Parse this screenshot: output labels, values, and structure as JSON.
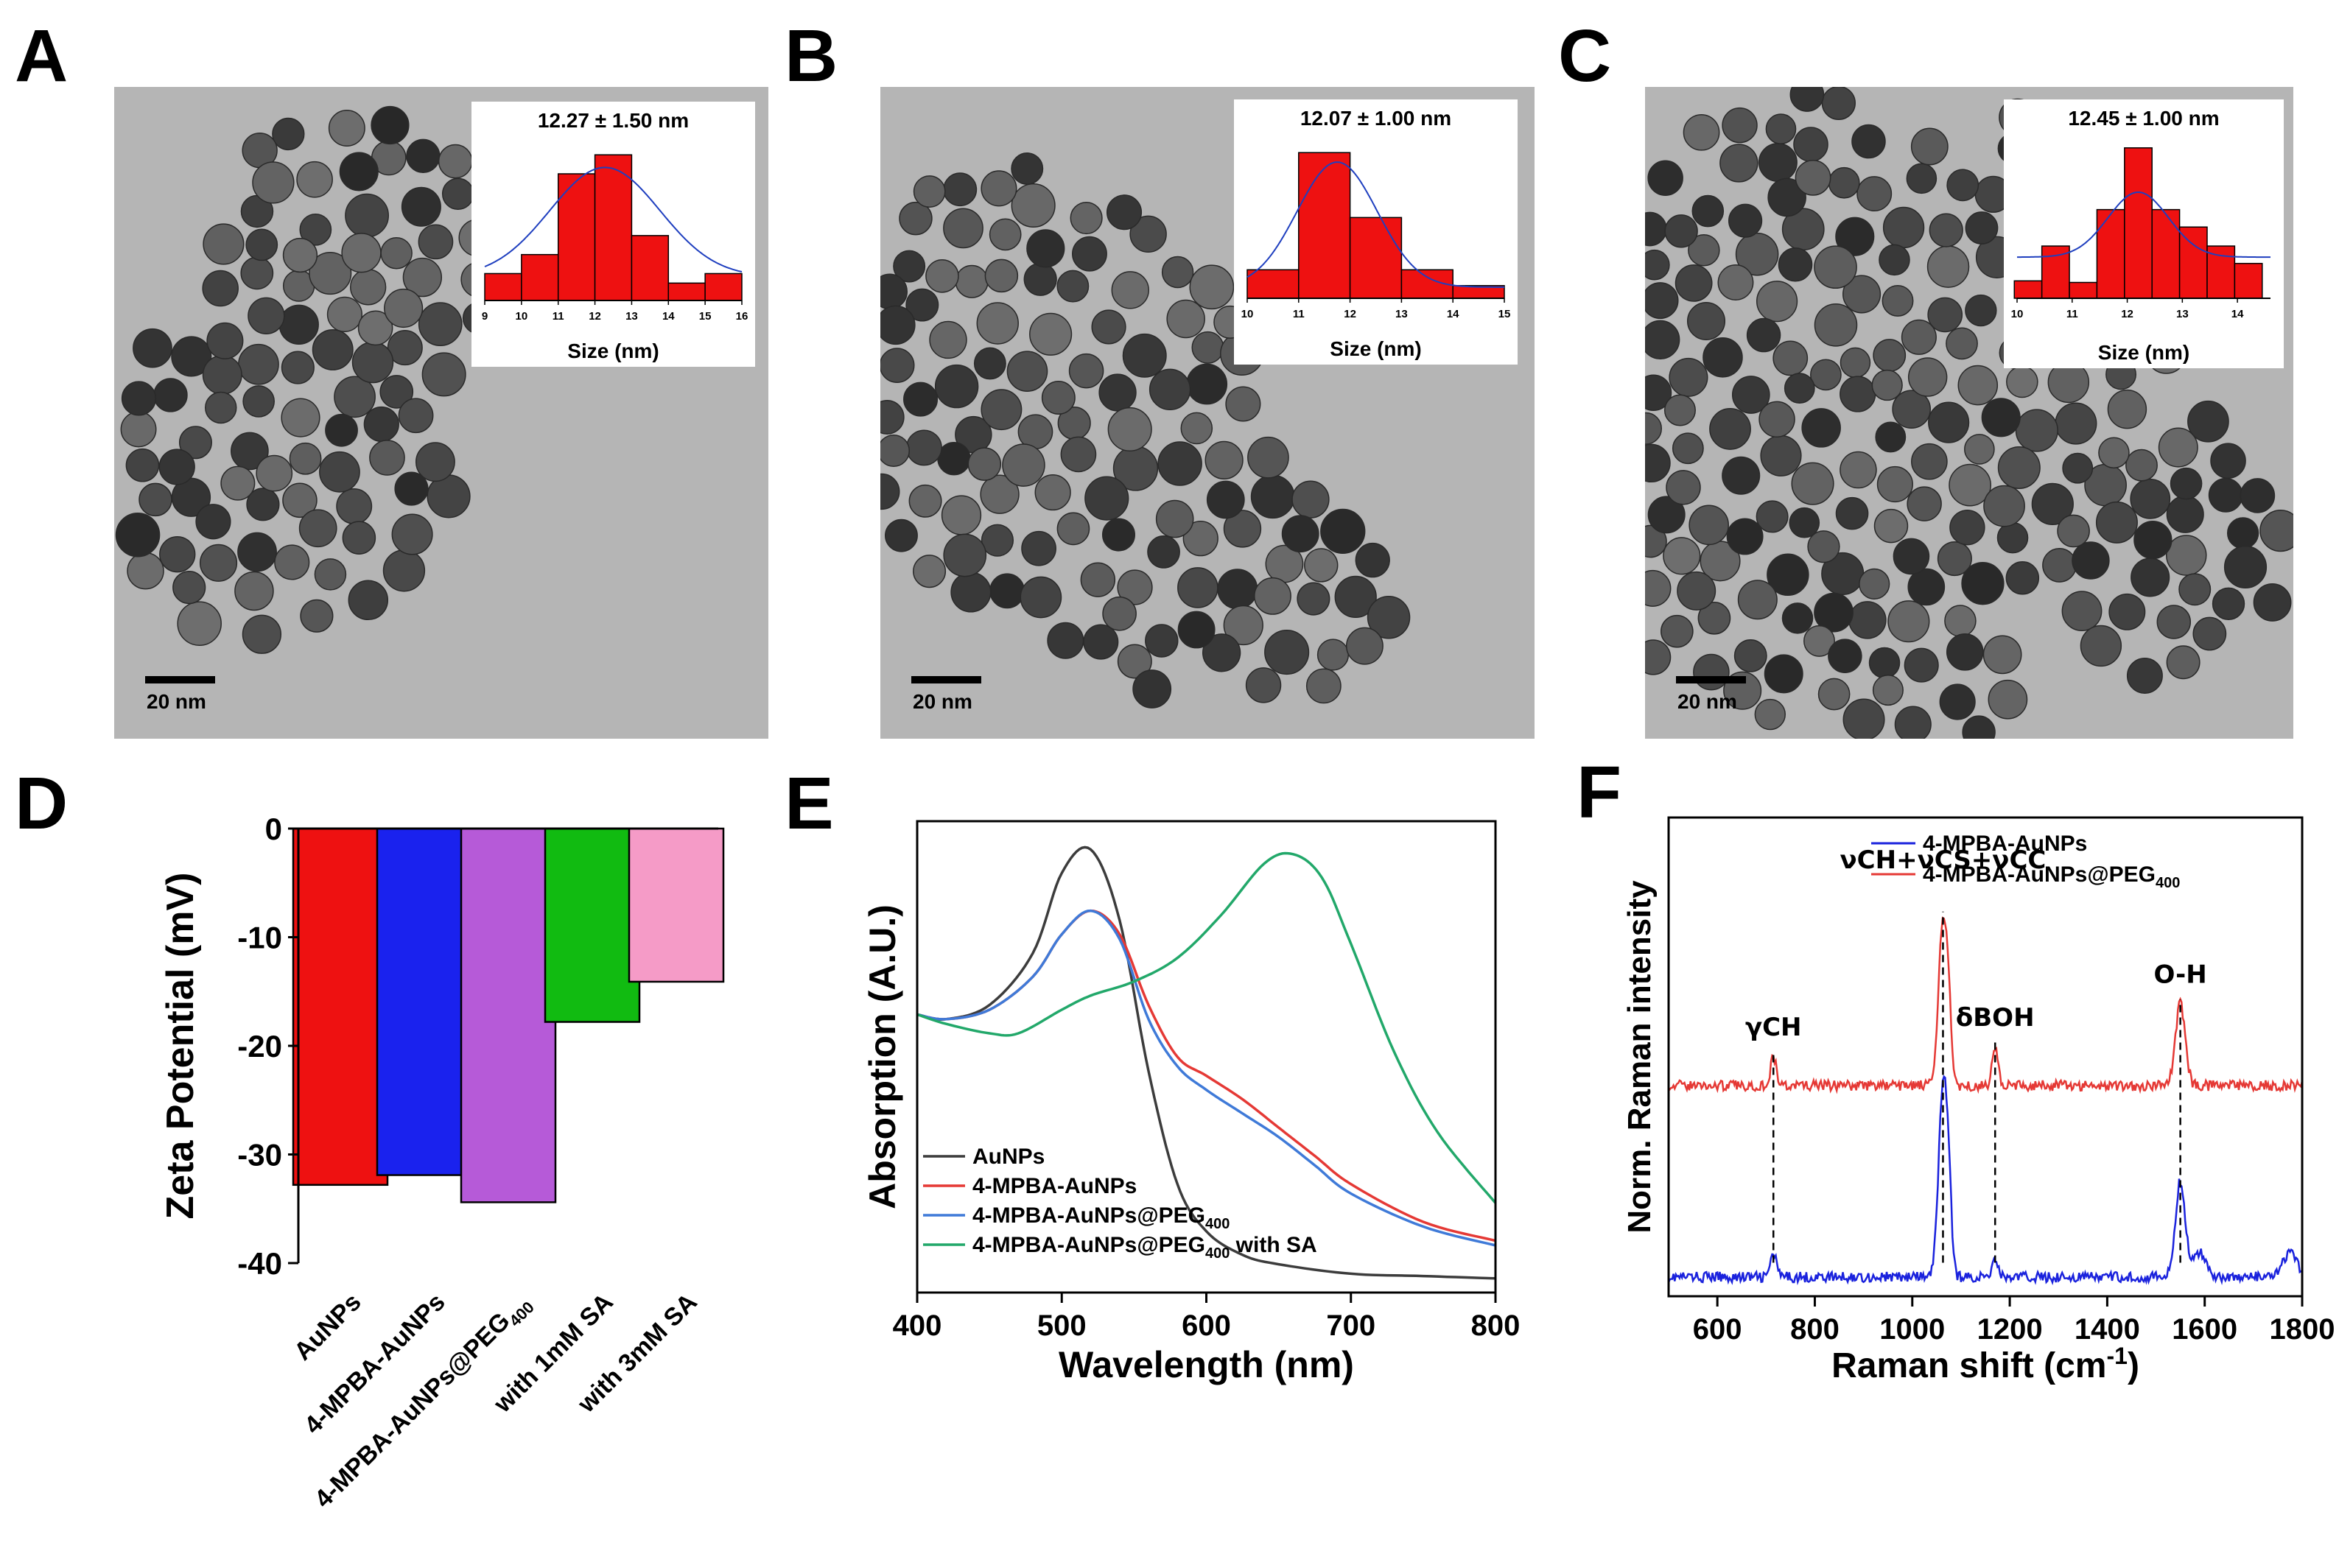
{
  "panel_labels": [
    "A",
    "B",
    "C",
    "D",
    "E",
    "F"
  ],
  "scale_bar_label": "20 nm",
  "colors": {
    "tem_background": "#b5b5b5",
    "particle": "#3a3a3a",
    "hist_bar": "#ee1111",
    "fit_curve": "#1f3fbf",
    "zeta": [
      "#ee1111",
      "#1a22ee",
      "#b65ad8",
      "#11bb11",
      "#f59bc7"
    ],
    "uv": [
      "#3c3c3c",
      "#e53935",
      "#3f7ad8",
      "#22a86a"
    ],
    "raman": [
      "#1a22dd",
      "#e53935"
    ]
  },
  "chart_data": [
    {
      "type": "bar",
      "panel": "A",
      "title": "12.27 ± 1.50 nm",
      "xlabel": "Size (nm)",
      "ylabel": "",
      "x_ticks": [
        "9",
        "10",
        "11",
        "12",
        "13",
        "14",
        "15",
        "16"
      ],
      "xlim": [
        9,
        16
      ],
      "ylim": [
        0,
        1
      ],
      "bar_centers": [
        9.5,
        10.5,
        11.5,
        12.5,
        13.5,
        14.5,
        15.5
      ],
      "values": [
        0.17,
        0.29,
        0.8,
        0.92,
        0.41,
        0.11,
        0.17
      ],
      "fit": {
        "type": "gaussian",
        "mean": 12.27,
        "sd": 1.5,
        "peak": 0.84,
        "baseline": 0.15
      }
    },
    {
      "type": "bar",
      "panel": "B",
      "title": "12.07 ± 1.00 nm",
      "xlabel": "Size (nm)",
      "ylabel": "",
      "x_ticks": [
        "10",
        "11",
        "12",
        "13",
        "14",
        "15"
      ],
      "xlim": [
        10,
        15
      ],
      "ylim": [
        0,
        1
      ],
      "bar_centers": [
        10.5,
        11.5,
        12.5,
        13.5,
        14.5
      ],
      "values": [
        0.18,
        0.92,
        0.51,
        0.18,
        0.08
      ],
      "fit": {
        "type": "gaussian",
        "mean": 11.75,
        "sd": 0.78,
        "peak": 0.86,
        "baseline": 0.07
      }
    },
    {
      "type": "bar",
      "panel": "C",
      "title": "12.45 ± 1.00 nm",
      "xlabel": "Size (nm)",
      "ylabel": "",
      "x_ticks": [
        "10",
        "11",
        "12",
        "13",
        "14"
      ],
      "xlim": [
        10,
        14.6
      ],
      "ylim": [
        0,
        1
      ],
      "bar_centers": [
        10.2,
        10.7,
        11.2,
        11.7,
        12.2,
        12.7,
        13.2,
        13.7,
        14.2
      ],
      "values": [
        0.11,
        0.33,
        0.1,
        0.56,
        0.95,
        0.56,
        0.45,
        0.33,
        0.22
      ],
      "fit": {
        "type": "gaussian",
        "mean": 12.2,
        "sd": 0.55,
        "peak": 0.67,
        "baseline": 0.26
      }
    },
    {
      "type": "bar",
      "panel": "D",
      "title": "",
      "xlabel": "",
      "ylabel": "Zeta Potential (mV)",
      "categories": [
        "AuNPs",
        "4-MPBA-AuNPs",
        "4-MPBA-AuNPs@PEG",
        "with 1mM SA",
        "with 3mM SA"
      ],
      "category_subscripts": [
        "",
        "",
        "400",
        "",
        ""
      ],
      "values": [
        -32.8,
        -31.9,
        -34.4,
        -17.8,
        -14.1
      ],
      "y_ticks": [
        "0",
        "-10",
        "-20",
        "-30",
        "-40"
      ],
      "ylim": [
        -40,
        0
      ]
    },
    {
      "type": "line",
      "panel": "E",
      "title": "",
      "xlabel": "Wavelength (nm)",
      "ylabel": "Absorption (A.U.)",
      "x_ticks": [
        "400",
        "500",
        "600",
        "700",
        "800"
      ],
      "xlim": [
        400,
        800
      ],
      "ylim": [
        0,
        1
      ],
      "series": [
        {
          "name": "AuNPs",
          "subscript": "",
          "suffix": "",
          "x": [
            400,
            420,
            450,
            480,
            500,
            520,
            540,
            560,
            580,
            600,
            625,
            650,
            700,
            750,
            800
          ],
          "y": [
            0.59,
            0.58,
            0.61,
            0.72,
            0.89,
            0.94,
            0.79,
            0.47,
            0.23,
            0.13,
            0.08,
            0.06,
            0.04,
            0.035,
            0.03
          ]
        },
        {
          "name": "4-MPBA-AuNPs",
          "subscript": "",
          "suffix": "",
          "x": [
            400,
            420,
            450,
            480,
            500,
            520,
            540,
            560,
            580,
            600,
            625,
            650,
            675,
            700,
            750,
            800
          ],
          "y": [
            0.59,
            0.58,
            0.6,
            0.67,
            0.76,
            0.81,
            0.76,
            0.61,
            0.5,
            0.46,
            0.41,
            0.35,
            0.29,
            0.23,
            0.15,
            0.11
          ]
        },
        {
          "name": "4-MPBA-AuNPs@PEG",
          "subscript": "400",
          "suffix": "",
          "x": [
            400,
            420,
            450,
            480,
            500,
            520,
            540,
            560,
            580,
            600,
            625,
            650,
            675,
            700,
            750,
            800
          ],
          "y": [
            0.59,
            0.58,
            0.6,
            0.67,
            0.76,
            0.81,
            0.75,
            0.58,
            0.48,
            0.43,
            0.38,
            0.33,
            0.27,
            0.21,
            0.14,
            0.1
          ]
        },
        {
          "name": "4-MPBA-AuNPs@PEG",
          "subscript": "400",
          "suffix": " with SA",
          "x": [
            400,
            420,
            450,
            470,
            500,
            520,
            550,
            580,
            610,
            640,
            660,
            680,
            700,
            730,
            760,
            800
          ],
          "y": [
            0.59,
            0.57,
            0.55,
            0.55,
            0.6,
            0.63,
            0.66,
            0.71,
            0.8,
            0.91,
            0.93,
            0.88,
            0.74,
            0.51,
            0.34,
            0.19
          ]
        }
      ],
      "legend_location": "bottom-left"
    },
    {
      "type": "line",
      "panel": "F",
      "title": "",
      "xlabel": "Raman shift (cm",
      "xlabel_sup": "-1",
      "xlabel_end": ")",
      "ylabel": "Norm. Raman intensity",
      "x_ticks": [
        "600",
        "800",
        "1000",
        "1200",
        "1400",
        "1600",
        "1800"
      ],
      "xlim": [
        500,
        1800
      ],
      "ylim": [
        0,
        1
      ],
      "series": [
        {
          "name": "4-MPBA-AuNPs",
          "subscript": "",
          "baseline": 0.04,
          "peaks": [
            [
              715,
              0.05,
              6
            ],
            [
              1063,
              0.4,
              9
            ],
            [
              1075,
              0.12,
              6
            ],
            [
              1170,
              0.04,
              6
            ],
            [
              1550,
              0.2,
              10
            ],
            [
              1590,
              0.05,
              14
            ],
            [
              1775,
              0.05,
              14
            ]
          ]
        },
        {
          "name": "4-MPBA-AuNPs@PEG",
          "subscript": "400",
          "baseline": 0.44,
          "peaks": [
            [
              715,
              0.06,
              6
            ],
            [
              1063,
              0.34,
              9
            ],
            [
              1075,
              0.1,
              6
            ],
            [
              1170,
              0.08,
              6
            ],
            [
              1550,
              0.17,
              10
            ]
          ]
        }
      ],
      "annotations": [
        {
          "text": "γCH",
          "x": 715
        },
        {
          "text": "νCH+νCS+νCC",
          "x": 1063
        },
        {
          "text": "δBOH",
          "x": 1170
        },
        {
          "text": "O-H",
          "x": 1550
        }
      ],
      "legend_location": "top-right"
    }
  ]
}
